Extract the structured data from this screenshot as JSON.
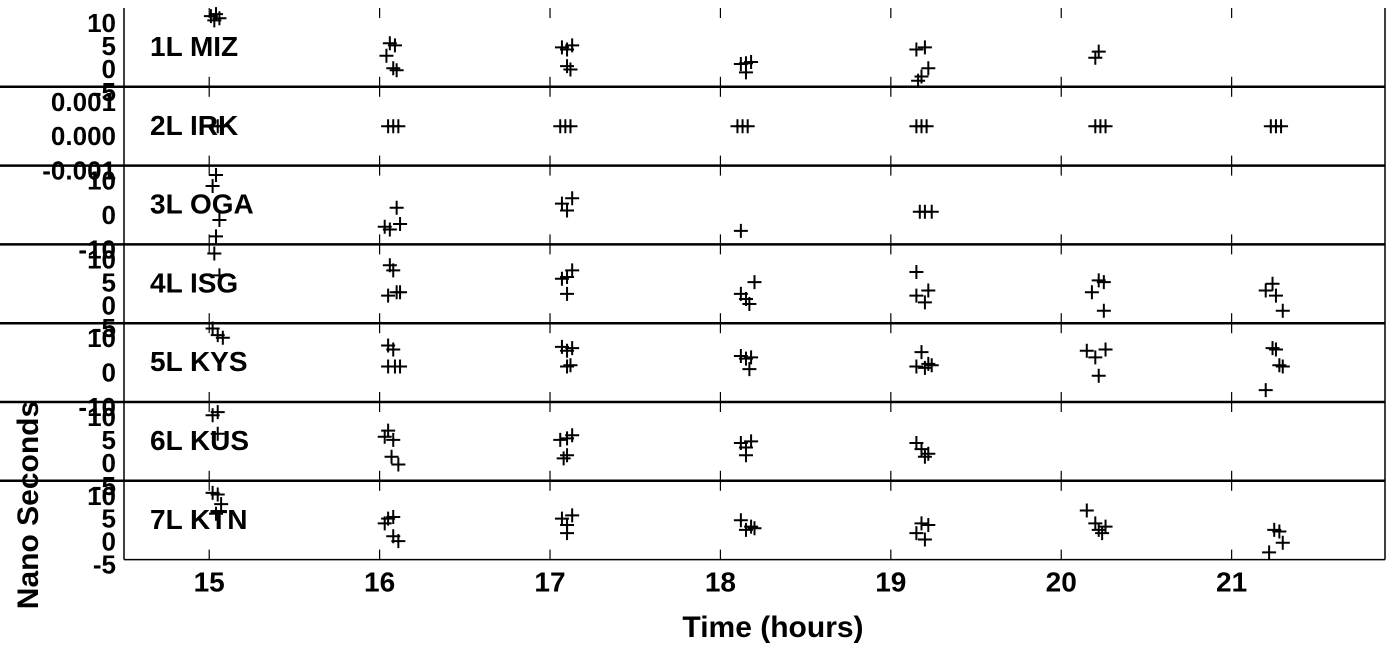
{
  "colors": {
    "ink": "#000000",
    "background": "#ffffff"
  },
  "chart_data": {
    "type": "scatter",
    "xlabel": "Time (hours)",
    "ylabel": "Nano Seconds",
    "xlim": [
      14.5,
      21.9
    ],
    "xticks": [
      "15",
      "16",
      "17",
      "18",
      "19",
      "20",
      "21"
    ],
    "marker": "plus",
    "grid": "vertical tick marks at each hour",
    "panels": [
      {
        "name": "1L MIZ",
        "ylim": [
          -5,
          12
        ],
        "ytick_labels": [
          "10",
          "5",
          "0",
          "-5"
        ],
        "points": [
          [
            15.01,
            11.0
          ],
          [
            15.04,
            11.5
          ],
          [
            15.06,
            10.5
          ],
          [
            15.03,
            10.0
          ],
          [
            16.04,
            1.5
          ],
          [
            16.06,
            4.5
          ],
          [
            16.09,
            4.0
          ],
          [
            16.08,
            -1.5
          ],
          [
            16.1,
            -2.0
          ],
          [
            17.07,
            3.5
          ],
          [
            17.1,
            3.0
          ],
          [
            17.13,
            4.0
          ],
          [
            17.1,
            -1.0
          ],
          [
            17.12,
            -1.8
          ],
          [
            18.12,
            -0.5
          ],
          [
            18.15,
            -0.3
          ],
          [
            18.18,
            0.0
          ],
          [
            18.15,
            -2.5
          ],
          [
            19.15,
            3.0
          ],
          [
            19.2,
            3.5
          ],
          [
            19.22,
            -1.5
          ],
          [
            19.18,
            -3.5
          ],
          [
            19.16,
            -4.5
          ],
          [
            20.2,
            1.0
          ],
          [
            20.22,
            2.5
          ]
        ]
      },
      {
        "name": "2L IRK",
        "ylim": [
          -0.001,
          0.001
        ],
        "ytick_labels": [
          "0.001",
          "0.000",
          "-0.001"
        ],
        "points": [
          [
            15.02,
            0
          ],
          [
            15.05,
            0
          ],
          [
            15.08,
            0
          ],
          [
            16.05,
            0
          ],
          [
            16.08,
            0
          ],
          [
            16.11,
            0
          ],
          [
            17.06,
            0
          ],
          [
            17.09,
            0
          ],
          [
            17.12,
            0
          ],
          [
            18.1,
            0
          ],
          [
            18.13,
            0
          ],
          [
            18.16,
            0
          ],
          [
            19.15,
            0
          ],
          [
            19.18,
            0
          ],
          [
            19.21,
            0
          ],
          [
            20.2,
            0
          ],
          [
            20.23,
            0
          ],
          [
            20.26,
            0
          ],
          [
            21.23,
            0
          ],
          [
            21.26,
            0
          ],
          [
            21.29,
            0
          ]
        ]
      },
      {
        "name": "3L OGA",
        "ylim": [
          -12,
          14
        ],
        "ytick_labels": [
          "10",
          "0",
          "-10"
        ],
        "points": [
          [
            15.02,
            8.0
          ],
          [
            15.04,
            12.0
          ],
          [
            15.06,
            -4.5
          ],
          [
            15.04,
            -10.5
          ],
          [
            16.03,
            -7.0
          ],
          [
            16.06,
            -8.0
          ],
          [
            16.1,
            0.0
          ],
          [
            16.12,
            -6.0
          ],
          [
            17.07,
            1.5
          ],
          [
            17.1,
            -1.0
          ],
          [
            17.13,
            3.5
          ],
          [
            18.12,
            -8.5
          ],
          [
            19.17,
            -1.5
          ],
          [
            19.2,
            -1.5
          ],
          [
            19.24,
            -1.5
          ]
        ]
      },
      {
        "name": "4L ISG",
        "ylim": [
          -7,
          14
        ],
        "ytick_labels": [
          "10",
          "5",
          "0",
          "-5"
        ],
        "points": [
          [
            15.03,
            12.5
          ],
          [
            15.06,
            6.0
          ],
          [
            16.06,
            9.0
          ],
          [
            16.08,
            7.5
          ],
          [
            16.1,
            1.0
          ],
          [
            16.05,
            0.0
          ],
          [
            16.12,
            1.0
          ],
          [
            17.07,
            5.0
          ],
          [
            17.1,
            5.5
          ],
          [
            17.13,
            7.5
          ],
          [
            17.1,
            0.5
          ],
          [
            18.12,
            0.5
          ],
          [
            18.15,
            -1.0
          ],
          [
            18.17,
            -2.5
          ],
          [
            18.2,
            4.0
          ],
          [
            19.15,
            0.0
          ],
          [
            19.2,
            -2.0
          ],
          [
            19.22,
            1.5
          ],
          [
            19.15,
            7.0
          ],
          [
            20.18,
            1.0
          ],
          [
            20.22,
            4.5
          ],
          [
            20.25,
            4.0
          ],
          [
            20.25,
            -4.5
          ],
          [
            21.2,
            1.5
          ],
          [
            21.24,
            3.5
          ],
          [
            21.26,
            0.0
          ],
          [
            21.3,
            -4.5
          ]
        ]
      },
      {
        "name": "5L KYS",
        "ylim": [
          -12,
          15
        ],
        "ytick_labels": [
          "10",
          "0",
          "-10"
        ],
        "points": [
          [
            15.02,
            14.5
          ],
          [
            15.05,
            12.0
          ],
          [
            15.08,
            11.0
          ],
          [
            16.05,
            8.0
          ],
          [
            16.08,
            6.5
          ],
          [
            16.05,
            0.0
          ],
          [
            16.09,
            0.0
          ],
          [
            16.12,
            0.0
          ],
          [
            17.07,
            7.5
          ],
          [
            17.1,
            6.0
          ],
          [
            17.13,
            7.0
          ],
          [
            17.1,
            0.0
          ],
          [
            17.12,
            0.5
          ],
          [
            18.12,
            4.0
          ],
          [
            18.15,
            3.0
          ],
          [
            18.18,
            3.5
          ],
          [
            18.17,
            -1.0
          ],
          [
            19.15,
            0.0
          ],
          [
            19.18,
            5.5
          ],
          [
            19.2,
            -0.5
          ],
          [
            19.22,
            1.0
          ],
          [
            19.24,
            0.5
          ],
          [
            20.15,
            6.0
          ],
          [
            20.2,
            3.5
          ],
          [
            20.22,
            -3.5
          ],
          [
            20.26,
            6.5
          ],
          [
            21.24,
            7.0
          ],
          [
            21.26,
            6.5
          ],
          [
            21.28,
            0.5
          ],
          [
            21.3,
            0.0
          ],
          [
            21.2,
            -9.0
          ]
        ]
      },
      {
        "name": "6L KUS",
        "ylim": [
          -8,
          15
        ],
        "ytick_labels": [
          "10",
          "5",
          "0",
          "-5"
        ],
        "points": [
          [
            15.02,
            12.0
          ],
          [
            15.05,
            13.0
          ],
          [
            15.05,
            6.0
          ],
          [
            16.05,
            7.0
          ],
          [
            16.03,
            5.0
          ],
          [
            16.08,
            4.0
          ],
          [
            16.07,
            -1.5
          ],
          [
            16.11,
            -4.0
          ],
          [
            17.06,
            4.0
          ],
          [
            17.1,
            4.5
          ],
          [
            17.13,
            5.5
          ],
          [
            17.1,
            -1.0
          ],
          [
            17.08,
            -2.0
          ],
          [
            18.12,
            3.0
          ],
          [
            18.15,
            1.5
          ],
          [
            18.18,
            3.5
          ],
          [
            18.15,
            -1.0
          ],
          [
            19.15,
            3.0
          ],
          [
            19.18,
            1.0
          ],
          [
            19.2,
            -1.5
          ],
          [
            19.22,
            -0.5
          ]
        ]
      },
      {
        "name": "7L KTN",
        "ylim": [
          -7,
          15
        ],
        "ytick_labels": [
          "10",
          "5",
          "0",
          "-5"
        ],
        "points": [
          [
            15.02,
            12.5
          ],
          [
            15.05,
            12.0
          ],
          [
            15.07,
            9.0
          ],
          [
            15.04,
            6.0
          ],
          [
            16.05,
            4.5
          ],
          [
            16.03,
            3.0
          ],
          [
            16.08,
            5.0
          ],
          [
            16.08,
            -1.0
          ],
          [
            16.11,
            -2.5
          ],
          [
            17.07,
            4.5
          ],
          [
            17.1,
            2.5
          ],
          [
            17.13,
            5.5
          ],
          [
            17.1,
            0.0
          ],
          [
            18.12,
            4.0
          ],
          [
            18.15,
            1.0
          ],
          [
            18.18,
            2.0
          ],
          [
            18.2,
            1.5
          ],
          [
            19.15,
            0.0
          ],
          [
            19.18,
            3.0
          ],
          [
            19.22,
            2.5
          ],
          [
            19.2,
            -2.0
          ],
          [
            20.15,
            7.0
          ],
          [
            20.2,
            3.0
          ],
          [
            20.22,
            1.0
          ],
          [
            20.24,
            0.0
          ],
          [
            20.26,
            2.0
          ],
          [
            21.22,
            -6.0
          ],
          [
            21.25,
            1.0
          ],
          [
            21.28,
            0.5
          ],
          [
            21.3,
            -3.0
          ]
        ]
      }
    ]
  }
}
